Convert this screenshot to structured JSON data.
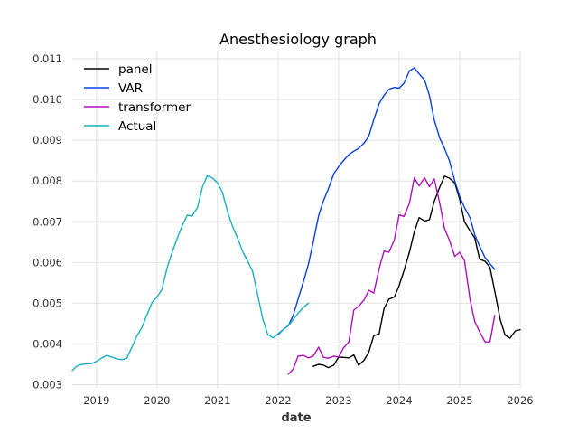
{
  "chart_data": {
    "type": "line",
    "title": "Anesthesiology graph",
    "xlabel": "date",
    "ylabel": "",
    "xlim": [
      2018.6,
      2026.0
    ],
    "ylim": [
      0.0029,
      0.0112
    ],
    "x_ticks": [
      "2019",
      "2020",
      "2021",
      "2022",
      "2023",
      "2024",
      "2025",
      "2026"
    ],
    "y_ticks": [
      "0.003",
      "0.004",
      "0.005",
      "0.006",
      "0.007",
      "0.008",
      "0.009",
      "0.010",
      "0.011"
    ],
    "grid": true,
    "legend_position": "upper-left",
    "series": [
      {
        "name": "panel",
        "color": "#000000",
        "x": [
          2022.58,
          2022.67,
          2022.75,
          2022.83,
          2022.92,
          2023.0,
          2023.08,
          2023.17,
          2023.25,
          2023.33,
          2023.42,
          2023.5,
          2023.58,
          2023.67,
          2023.75,
          2023.83,
          2023.92,
          2024.0,
          2024.08,
          2024.17,
          2024.25,
          2024.33,
          2024.42,
          2024.5,
          2024.58,
          2024.67,
          2024.75,
          2024.83,
          2024.92,
          2025.0,
          2025.08,
          2025.17,
          2025.25,
          2025.33,
          2025.42,
          2025.5,
          2025.58,
          2025.67,
          2025.75,
          2025.83,
          2025.92,
          2026.0
        ],
        "values": [
          0.00345,
          0.0035,
          0.00348,
          0.00342,
          0.00348,
          0.00368,
          0.00367,
          0.00366,
          0.00373,
          0.00348,
          0.0036,
          0.0038,
          0.0042,
          0.00425,
          0.00487,
          0.0051,
          0.00515,
          0.00543,
          0.0058,
          0.00625,
          0.00675,
          0.0071,
          0.00702,
          0.00705,
          0.0075,
          0.00785,
          0.00812,
          0.00807,
          0.00795,
          0.00755,
          0.007,
          0.00678,
          0.0066,
          0.00608,
          0.00603,
          0.00588,
          0.0053,
          0.0046,
          0.00422,
          0.00414,
          0.00432,
          0.00435
        ]
      },
      {
        "name": "VAR",
        "color": "#0a3fe8",
        "x": [
          2022.0,
          2022.08,
          2022.17,
          2022.25,
          2022.33,
          2022.42,
          2022.5,
          2022.58,
          2022.67,
          2022.75,
          2022.83,
          2022.92,
          2023.0,
          2023.08,
          2023.17,
          2023.25,
          2023.33,
          2023.42,
          2023.5,
          2023.58,
          2023.67,
          2023.75,
          2023.83,
          2023.92,
          2024.0,
          2024.08,
          2024.17,
          2024.25,
          2024.33,
          2024.42,
          2024.5,
          2024.58,
          2024.67,
          2024.75,
          2024.83,
          2024.92,
          2025.0,
          2025.08,
          2025.17,
          2025.25,
          2025.33,
          2025.42,
          2025.5,
          2025.58
        ],
        "values": [
          0.00423,
          0.00435,
          0.00445,
          0.0047,
          0.0051,
          0.00553,
          0.00595,
          0.0065,
          0.00715,
          0.00752,
          0.0078,
          0.00818,
          0.00835,
          0.0085,
          0.00865,
          0.00873,
          0.0088,
          0.00893,
          0.0091,
          0.0095,
          0.0099,
          0.0101,
          0.01025,
          0.0103,
          0.01028,
          0.0104,
          0.0107,
          0.01078,
          0.01063,
          0.01048,
          0.0101,
          0.0095,
          0.00905,
          0.0088,
          0.0085,
          0.008,
          0.00762,
          0.00735,
          0.0071,
          0.00668,
          0.0064,
          0.00612,
          0.00597,
          0.00583
        ]
      },
      {
        "name": "transformer",
        "color": "#b00fba",
        "x": [
          2022.17,
          2022.25,
          2022.33,
          2022.42,
          2022.5,
          2022.58,
          2022.67,
          2022.75,
          2022.83,
          2022.92,
          2023.0,
          2023.08,
          2023.17,
          2023.25,
          2023.33,
          2023.42,
          2023.5,
          2023.58,
          2023.67,
          2023.75,
          2023.83,
          2023.92,
          2024.0,
          2024.08,
          2024.17,
          2024.25,
          2024.33,
          2024.42,
          2024.5,
          2024.58,
          2024.67,
          2024.75,
          2024.83,
          2024.92,
          2025.0,
          2025.08,
          2025.17,
          2025.25,
          2025.33,
          2025.42,
          2025.5,
          2025.58
        ],
        "values": [
          0.00326,
          0.00338,
          0.0037,
          0.00372,
          0.00366,
          0.0037,
          0.00392,
          0.00367,
          0.00365,
          0.0037,
          0.00368,
          0.0039,
          0.00405,
          0.00483,
          0.00492,
          0.00508,
          0.00532,
          0.00525,
          0.00585,
          0.00628,
          0.00625,
          0.00655,
          0.00717,
          0.00713,
          0.00745,
          0.00808,
          0.00788,
          0.00808,
          0.00786,
          0.00805,
          0.00746,
          0.00683,
          0.00655,
          0.00615,
          0.00625,
          0.00605,
          0.0051,
          0.00455,
          0.0043,
          0.00405,
          0.00405,
          0.0047
        ]
      },
      {
        "name": "Actual",
        "color": "#17b0c2",
        "x": [
          2018.6,
          2018.67,
          2018.75,
          2018.83,
          2018.92,
          2019.0,
          2019.08,
          2019.17,
          2019.25,
          2019.33,
          2019.42,
          2019.5,
          2019.58,
          2019.67,
          2019.75,
          2019.83,
          2019.92,
          2020.0,
          2020.08,
          2020.17,
          2020.25,
          2020.33,
          2020.42,
          2020.5,
          2020.58,
          2020.67,
          2020.75,
          2020.83,
          2020.92,
          2021.0,
          2021.08,
          2021.17,
          2021.25,
          2021.33,
          2021.42,
          2021.5,
          2021.58,
          2021.67,
          2021.75,
          2021.83,
          2021.92,
          2022.0,
          2022.08,
          2022.17,
          2022.25,
          2022.33,
          2022.42,
          2022.5
        ],
        "values": [
          0.00335,
          0.00345,
          0.0035,
          0.00351,
          0.00352,
          0.00357,
          0.00365,
          0.00372,
          0.00368,
          0.00364,
          0.00361,
          0.00365,
          0.0039,
          0.0042,
          0.0044,
          0.0047,
          0.00502,
          0.00515,
          0.00533,
          0.00588,
          0.00625,
          0.00658,
          0.00692,
          0.00716,
          0.00714,
          0.00735,
          0.00785,
          0.00813,
          0.00807,
          0.00795,
          0.00773,
          0.00722,
          0.00688,
          0.0066,
          0.00625,
          0.00603,
          0.00578,
          0.00515,
          0.0046,
          0.00423,
          0.00415,
          0.00425,
          0.00435,
          0.00445,
          0.0046,
          0.00475,
          0.0049,
          0.005
        ]
      }
    ]
  }
}
